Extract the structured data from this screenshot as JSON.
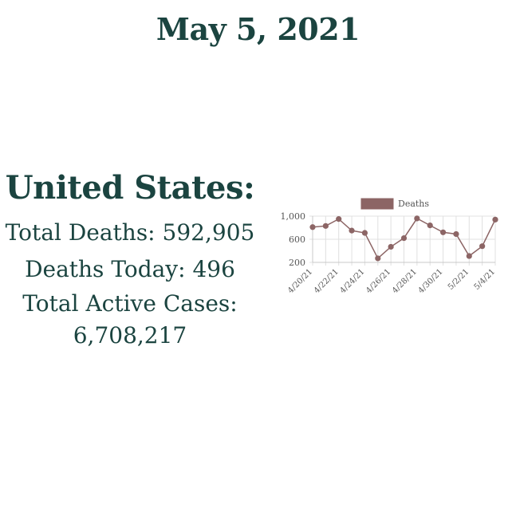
{
  "colors": {
    "dark": "#1b4440",
    "series": "#8c6565",
    "grid": "#e0e0e0",
    "axis_text": "#555555"
  },
  "header": {
    "date": "May 5, 2021"
  },
  "stats": {
    "country": "United States:",
    "total_deaths_label": "Total Deaths:",
    "total_deaths_value": "592,905",
    "deaths_today_label": "Deaths Today:",
    "deaths_today_value": "496",
    "active_cases_label": "Total Active Cases:",
    "active_cases_value": "6,708,217"
  },
  "chart_data": {
    "type": "line",
    "legend": {
      "position": "top",
      "entries": [
        "Deaths"
      ]
    },
    "x": [
      "4/20/21",
      "4/21/21",
      "4/22/21",
      "4/23/21",
      "4/24/21",
      "4/25/21",
      "4/26/21",
      "4/27/21",
      "4/28/21",
      "4/29/21",
      "4/30/21",
      "5/1/21",
      "5/2/21",
      "5/3/21",
      "5/4/21"
    ],
    "x_tick_labels": [
      "4/20/21",
      "4/22/21",
      "4/24/21",
      "4/26/21",
      "4/28/21",
      "4/30/21",
      "5/2/21",
      "5/4/21"
    ],
    "series": [
      {
        "name": "Deaths",
        "values": [
          810,
          830,
          950,
          750,
          710,
          270,
          470,
          620,
          960,
          840,
          720,
          690,
          310,
          480,
          940
        ]
      }
    ],
    "y_ticks": [
      "200",
      "600",
      "1,000"
    ],
    "y_tick_values": [
      200,
      600,
      1000
    ],
    "ylim": [
      200,
      1000
    ],
    "grid": true
  }
}
